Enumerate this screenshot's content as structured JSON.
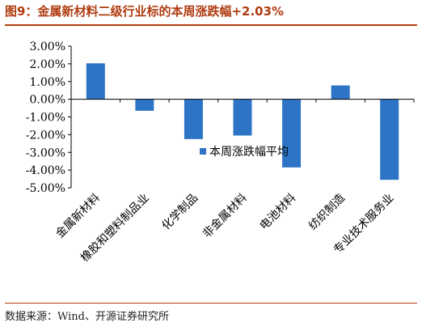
{
  "title": "图9：金属新材料二级行业标的本周涨跌幅+2.03%",
  "source": "数据来源：Wind、开源证券研究所",
  "colors": {
    "bar": "#2e74c6",
    "title": "#b03c10",
    "axis": "#000000"
  },
  "chart_data": {
    "type": "bar",
    "categories": [
      "金属新材料",
      "橡胶和塑料制品业",
      "化学制品",
      "非金属材料",
      "电池材料",
      "纺织制造",
      "专业技术服务业"
    ],
    "series": [
      {
        "name": "本周涨跌幅平均",
        "values": [
          2.03,
          -0.65,
          -2.25,
          -2.05,
          -3.85,
          0.78,
          -4.55
        ]
      }
    ],
    "ylim": [
      -5,
      3
    ],
    "yticks": [
      "3.00%",
      "2.00%",
      "1.00%",
      "0.00%",
      "-1.00%",
      "-2.00%",
      "-3.00%",
      "-4.00%",
      "-5.00%"
    ],
    "grid": false,
    "legend_position": "center-right"
  }
}
